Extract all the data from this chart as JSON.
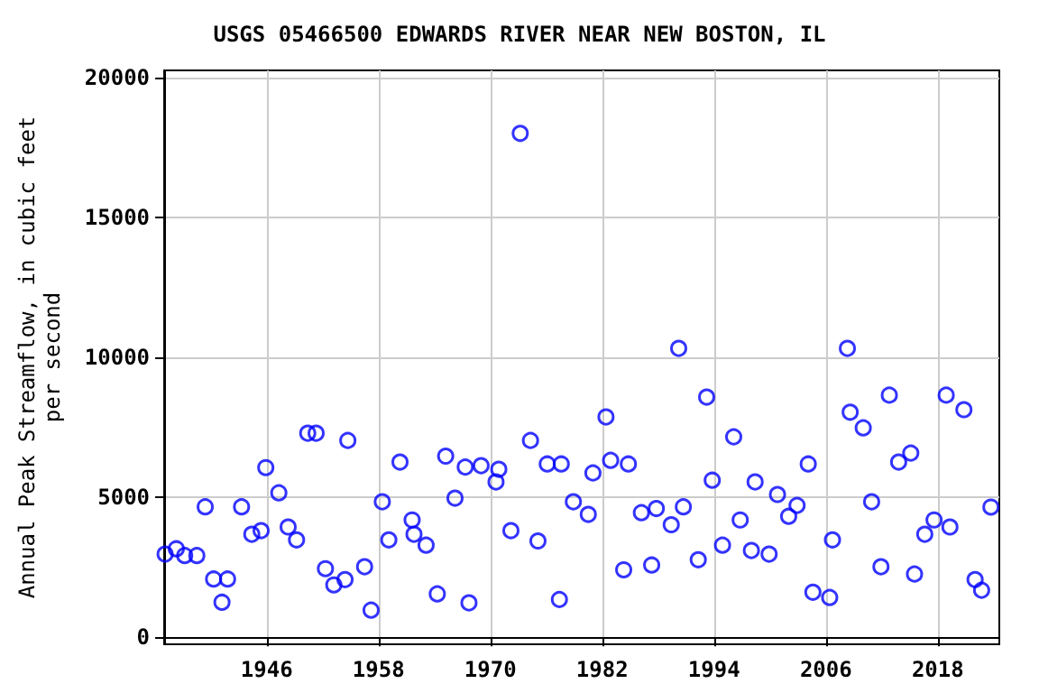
{
  "chart_data": {
    "type": "scatter",
    "title": "USGS 05466500 EDWARDS RIVER NEAR NEW BOSTON, IL",
    "ylabel": "Annual Peak Streamflow, in cubic feet\nper second",
    "marker": "circle",
    "grid": true,
    "xlim": [
      1935,
      2024.6
    ],
    "xticks": [
      1946,
      1958,
      1970,
      1982,
      1994,
      2006,
      2018
    ],
    "ylim": [
      -250,
      20250
    ],
    "yticks": [
      0,
      5000,
      10000,
      15000,
      20000
    ],
    "series": [
      {
        "color": "#0000ff",
        "x": [
          1935.1,
          1936.3,
          1937.2,
          1938.5,
          1939.4,
          1940.3,
          1941.2,
          1941.8,
          1943.3,
          1944.4,
          1945.4,
          1945.9,
          1947.3,
          1948.3,
          1949.2,
          1950.4,
          1951.3,
          1952.3,
          1953.2,
          1954.4,
          1954.7,
          1956.5,
          1957.2,
          1958.4,
          1959.1,
          1960.3,
          1961.6,
          1961.8,
          1963.1,
          1964.3,
          1965.2,
          1966.2,
          1967.3,
          1967.7,
          1969,
          1970.6,
          1970.9,
          1972.2,
          1973.2,
          1974.3,
          1975.1,
          1976.1,
          1977.4,
          1977.6,
          1978.9,
          1980.5,
          1981,
          1982.4,
          1982.9,
          1984.3,
          1984.8,
          1986.2,
          1987.3,
          1987.8,
          1989.4,
          1990.2,
          1990.7,
          1992.3,
          1993.2,
          1993.8,
          1994.9,
          1996.1,
          1996.8,
          1998,
          1998.4,
          1999.9,
          2000.8,
          2002,
          2002.9,
          2004.1,
          2004.6,
          2006.4,
          2006.7,
          2008.3,
          2008.6,
          2010,
          2010.9,
          2011.9,
          2012.8,
          2013.8,
          2015.1,
          2015.5,
          2016.6,
          2017.6,
          2018.9,
          2019.3,
          2020.8,
          2022,
          2022.7,
          2023.7
        ],
        "values": [
          2970,
          3160,
          2920,
          2920,
          4660,
          2080,
          1250,
          2080,
          4660,
          3680,
          3810,
          6060,
          5160,
          3940,
          3480,
          7290,
          7290,
          2450,
          1870,
          2060,
          7030,
          2520,
          970,
          4840,
          3480,
          6260,
          4190,
          3680,
          3290,
          1550,
          6470,
          4970,
          6080,
          1230,
          6130,
          5550,
          6000,
          3810,
          18000,
          7030,
          3440,
          6190,
          1350,
          6190,
          4840,
          4390,
          5870,
          7870,
          6320,
          2410,
          6190,
          4450,
          2580,
          4600,
          4020,
          10320,
          4660,
          2770,
          8580,
          5610,
          3290,
          7160,
          4190,
          3100,
          5550,
          2970,
          5100,
          4320,
          4710,
          6190,
          1610,
          1420,
          3480,
          10320,
          8040,
          7480,
          4840,
          2520,
          8650,
          6260,
          6580,
          2260,
          3680,
          4190,
          8650,
          3940,
          8130,
          2060,
          1680,
          4650
        ]
      }
    ]
  }
}
